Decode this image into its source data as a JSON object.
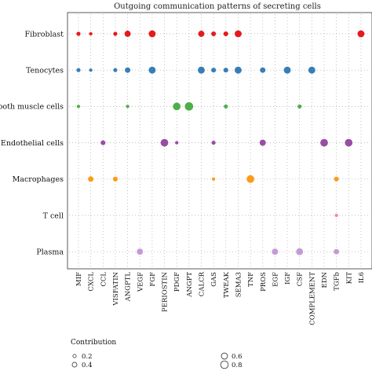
{
  "chart_data": {
    "type": "scatter",
    "title": "Outgoing communication patterns of secreting cells",
    "cell_types": [
      "Fibroblast",
      "Tenocytes",
      "Smooth muscle cells",
      "Endothelial cells",
      "Macrophages",
      "T cell",
      "Plasma"
    ],
    "pathways": [
      "MIF",
      "CXCL",
      "CCL",
      "VISFATIN",
      "ANGPTL",
      "VEGF",
      "FGF",
      "PERIOSTIN",
      "PDGF",
      "ANGPT",
      "CALCR",
      "GAS",
      "TWEAK",
      "SEMA3",
      "TNF",
      "PROS",
      "EGF",
      "IGF",
      "CSF",
      "COMPLEMENT",
      "EDN",
      "TGFb",
      "KIT",
      "IL6"
    ],
    "colors": {
      "Fibroblast": "#e41a1c",
      "Tenocytes": "#377eb8",
      "Smooth muscle cells": "#4daf4a",
      "Endothelial cells": "#984ea3",
      "Macrophages": "#ff9a1a",
      "T cell": "#f781bf",
      "Plasma": "#c59ad6"
    },
    "points": [
      {
        "cell": "Fibroblast",
        "pathway": "MIF",
        "value": 0.3
      },
      {
        "cell": "Fibroblast",
        "pathway": "CXCL",
        "value": 0.2
      },
      {
        "cell": "Fibroblast",
        "pathway": "VISFATIN",
        "value": 0.3
      },
      {
        "cell": "Fibroblast",
        "pathway": "ANGPTL",
        "value": 0.6
      },
      {
        "cell": "Fibroblast",
        "pathway": "FGF",
        "value": 0.7
      },
      {
        "cell": "Fibroblast",
        "pathway": "CALCR",
        "value": 0.6
      },
      {
        "cell": "Fibroblast",
        "pathway": "GAS",
        "value": 0.4
      },
      {
        "cell": "Fibroblast",
        "pathway": "TWEAK",
        "value": 0.4
      },
      {
        "cell": "Fibroblast",
        "pathway": "SEMA3",
        "value": 0.7
      },
      {
        "cell": "Fibroblast",
        "pathway": "IL6",
        "value": 0.7
      },
      {
        "cell": "Tenocytes",
        "pathway": "MIF",
        "value": 0.3
      },
      {
        "cell": "Tenocytes",
        "pathway": "CXCL",
        "value": 0.2
      },
      {
        "cell": "Tenocytes",
        "pathway": "VISFATIN",
        "value": 0.3
      },
      {
        "cell": "Tenocytes",
        "pathway": "ANGPTL",
        "value": 0.5
      },
      {
        "cell": "Tenocytes",
        "pathway": "FGF",
        "value": 0.7
      },
      {
        "cell": "Tenocytes",
        "pathway": "CALCR",
        "value": 0.7
      },
      {
        "cell": "Tenocytes",
        "pathway": "GAS",
        "value": 0.4
      },
      {
        "cell": "Tenocytes",
        "pathway": "TWEAK",
        "value": 0.4
      },
      {
        "cell": "Tenocytes",
        "pathway": "SEMA3",
        "value": 0.7
      },
      {
        "cell": "Tenocytes",
        "pathway": "PROS",
        "value": 0.5
      },
      {
        "cell": "Tenocytes",
        "pathway": "IGF",
        "value": 0.7
      },
      {
        "cell": "Tenocytes",
        "pathway": "COMPLEMENT",
        "value": 0.7
      },
      {
        "cell": "Smooth muscle cells",
        "pathway": "MIF",
        "value": 0.2
      },
      {
        "cell": "Smooth muscle cells",
        "pathway": "ANGPTL",
        "value": 0.2
      },
      {
        "cell": "Smooth muscle cells",
        "pathway": "PDGF",
        "value": 0.8
      },
      {
        "cell": "Smooth muscle cells",
        "pathway": "ANGPT",
        "value": 0.9
      },
      {
        "cell": "Smooth muscle cells",
        "pathway": "TWEAK",
        "value": 0.3
      },
      {
        "cell": "Smooth muscle cells",
        "pathway": "CSF",
        "value": 0.3
      },
      {
        "cell": "Endothelial cells",
        "pathway": "CCL",
        "value": 0.4
      },
      {
        "cell": "Endothelial cells",
        "pathway": "PERIOSTIN",
        "value": 0.8
      },
      {
        "cell": "Endothelial cells",
        "pathway": "PDGF",
        "value": 0.2
      },
      {
        "cell": "Endothelial cells",
        "pathway": "GAS",
        "value": 0.3
      },
      {
        "cell": "Endothelial cells",
        "pathway": "PROS",
        "value": 0.6
      },
      {
        "cell": "Endothelial cells",
        "pathway": "EDN",
        "value": 0.8
      },
      {
        "cell": "Endothelial cells",
        "pathway": "KIT",
        "value": 0.8
      },
      {
        "cell": "Macrophages",
        "pathway": "CXCL",
        "value": 0.5
      },
      {
        "cell": "Macrophages",
        "pathway": "VISFATIN",
        "value": 0.4
      },
      {
        "cell": "Macrophages",
        "pathway": "GAS",
        "value": 0.2
      },
      {
        "cell": "Macrophages",
        "pathway": "TNF",
        "value": 0.8
      },
      {
        "cell": "Macrophages",
        "pathway": "TGFb",
        "value": 0.4
      },
      {
        "cell": "T cell",
        "pathway": "TGFb",
        "value": 0.2
      },
      {
        "cell": "Plasma",
        "pathway": "VEGF",
        "value": 0.6
      },
      {
        "cell": "Plasma",
        "pathway": "EGF",
        "value": 0.6
      },
      {
        "cell": "Plasma",
        "pathway": "CSF",
        "value": 0.7
      },
      {
        "cell": "Plasma",
        "pathway": "TGFb",
        "value": 0.5
      }
    ],
    "legend": {
      "title": "Contribution",
      "entries": [
        {
          "label": "0.2",
          "value": 0.2
        },
        {
          "label": "0.4",
          "value": 0.4
        },
        {
          "label": "0.6",
          "value": 0.6
        },
        {
          "label": "0.8",
          "value": 0.8
        }
      ]
    }
  }
}
